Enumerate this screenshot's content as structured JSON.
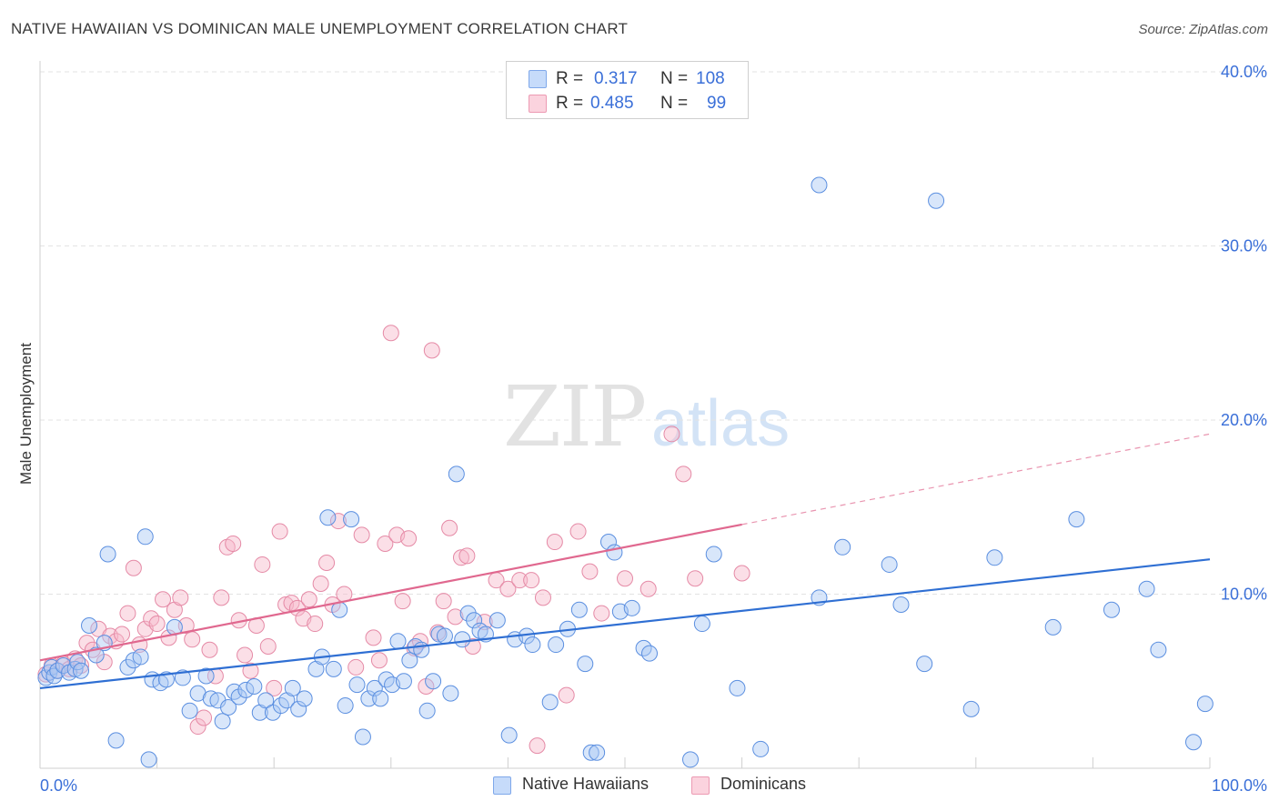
{
  "title": "NATIVE HAWAIIAN VS DOMINICAN MALE UNEMPLOYMENT CORRELATION CHART",
  "source": "Source: ZipAtlas.com",
  "watermark": {
    "zip": "ZIP",
    "atlas": "atlas"
  },
  "legend_top": {
    "rows": [
      {
        "r_label": "R =",
        "r_value": "0.317",
        "n_label": "N =",
        "n_value": "108",
        "color": "#a9c8f5"
      },
      {
        "r_label": "R =",
        "r_value": "0.485",
        "n_label": "N =",
        "n_value": "99",
        "color": "#f7b8c9"
      }
    ]
  },
  "bottom_legend": [
    {
      "label": "Native Hawaiians",
      "color": "#a9c8f5"
    },
    {
      "label": "Dominicans",
      "color": "#f7b8c9"
    }
  ],
  "chart_data": {
    "type": "scatter",
    "title": "NATIVE HAWAIIAN VS DOMINICAN MALE UNEMPLOYMENT CORRELATION CHART",
    "xlabel": "",
    "ylabel": "Male Unemployment",
    "xlim": [
      0,
      100
    ],
    "ylim": [
      0,
      40
    ],
    "x_tick_labels": [
      "0.0%",
      "100.0%"
    ],
    "y_tick_labels": [
      "10.0%",
      "20.0%",
      "30.0%",
      "40.0%"
    ],
    "y_ticks": [
      10,
      20,
      30,
      40
    ],
    "grid": true,
    "legend_position": "top-center",
    "colors": {
      "native_hawaiians_fill": "#a9c8f5",
      "native_hawaiians_stroke": "#5b8fe0",
      "native_hawaiians_line": "#2f6fd3",
      "dominicans_fill": "#f7b8c9",
      "dominicans_stroke": "#e58aa6",
      "dominicans_line": "#e0688f",
      "tick_label": "#3a6fd8"
    },
    "series": [
      {
        "name": "Native Hawaiians",
        "trend": {
          "x": [
            0,
            100
          ],
          "y": [
            4.6,
            12.0
          ]
        },
        "points": [
          [
            0.5,
            5.2
          ],
          [
            0.8,
            5.5
          ],
          [
            1.0,
            5.8
          ],
          [
            1.2,
            5.3
          ],
          [
            1.5,
            5.6
          ],
          [
            2.0,
            5.9
          ],
          [
            2.5,
            5.5
          ],
          [
            3.0,
            5.7
          ],
          [
            3.2,
            6.1
          ],
          [
            3.5,
            5.6
          ],
          [
            4.2,
            8.2
          ],
          [
            4.8,
            6.5
          ],
          [
            5.5,
            7.2
          ],
          [
            5.8,
            12.3
          ],
          [
            6.5,
            1.6
          ],
          [
            7.5,
            5.8
          ],
          [
            8.0,
            6.2
          ],
          [
            8.6,
            6.4
          ],
          [
            9.0,
            13.3
          ],
          [
            9.3,
            0.5
          ],
          [
            9.6,
            5.1
          ],
          [
            10.3,
            4.9
          ],
          [
            10.8,
            5.1
          ],
          [
            11.5,
            8.1
          ],
          [
            12.2,
            5.2
          ],
          [
            12.8,
            3.3
          ],
          [
            13.5,
            4.3
          ],
          [
            14.2,
            5.3
          ],
          [
            14.6,
            4.0
          ],
          [
            15.2,
            3.9
          ],
          [
            15.6,
            2.7
          ],
          [
            16.1,
            3.5
          ],
          [
            16.6,
            4.4
          ],
          [
            17.0,
            4.1
          ],
          [
            17.6,
            4.5
          ],
          [
            18.3,
            4.7
          ],
          [
            18.8,
            3.2
          ],
          [
            19.3,
            3.9
          ],
          [
            19.9,
            3.2
          ],
          [
            20.6,
            3.6
          ],
          [
            21.1,
            3.9
          ],
          [
            21.6,
            4.6
          ],
          [
            22.1,
            3.4
          ],
          [
            22.6,
            4.0
          ],
          [
            23.6,
            5.7
          ],
          [
            24.1,
            6.4
          ],
          [
            24.6,
            14.4
          ],
          [
            25.1,
            5.7
          ],
          [
            25.6,
            9.1
          ],
          [
            26.1,
            3.6
          ],
          [
            26.6,
            14.3
          ],
          [
            27.1,
            4.8
          ],
          [
            27.6,
            1.8
          ],
          [
            28.1,
            4.0
          ],
          [
            28.6,
            4.6
          ],
          [
            29.1,
            4.0
          ],
          [
            29.6,
            5.1
          ],
          [
            30.1,
            4.8
          ],
          [
            30.6,
            7.3
          ],
          [
            31.1,
            5.0
          ],
          [
            31.6,
            6.2
          ],
          [
            32.1,
            7.0
          ],
          [
            32.6,
            6.8
          ],
          [
            33.1,
            3.3
          ],
          [
            33.6,
            5.0
          ],
          [
            34.1,
            7.7
          ],
          [
            34.6,
            7.6
          ],
          [
            35.1,
            4.3
          ],
          [
            35.6,
            16.9
          ],
          [
            36.1,
            7.4
          ],
          [
            36.6,
            8.9
          ],
          [
            37.1,
            8.5
          ],
          [
            37.6,
            7.9
          ],
          [
            38.1,
            7.7
          ],
          [
            39.1,
            8.5
          ],
          [
            40.1,
            1.9
          ],
          [
            40.6,
            7.4
          ],
          [
            41.6,
            7.6
          ],
          [
            42.1,
            7.1
          ],
          [
            43.6,
            3.8
          ],
          [
            44.1,
            7.1
          ],
          [
            45.1,
            8.0
          ],
          [
            46.1,
            9.1
          ],
          [
            46.6,
            6.0
          ],
          [
            47.1,
            0.9
          ],
          [
            47.6,
            0.9
          ],
          [
            48.6,
            13.0
          ],
          [
            49.1,
            12.4
          ],
          [
            49.6,
            9.0
          ],
          [
            50.6,
            9.2
          ],
          [
            51.6,
            6.9
          ],
          [
            52.1,
            6.6
          ],
          [
            55.6,
            0.5
          ],
          [
            56.6,
            8.3
          ],
          [
            57.6,
            12.3
          ],
          [
            59.6,
            4.6
          ],
          [
            61.6,
            1.1
          ],
          [
            66.6,
            9.8
          ],
          [
            66.6,
            33.5
          ],
          [
            68.6,
            12.7
          ],
          [
            72.6,
            11.7
          ],
          [
            73.6,
            9.4
          ],
          [
            75.6,
            6.0
          ],
          [
            76.6,
            32.6
          ],
          [
            79.6,
            3.4
          ],
          [
            81.6,
            12.1
          ],
          [
            86.6,
            8.1
          ],
          [
            88.6,
            14.3
          ],
          [
            91.6,
            9.1
          ],
          [
            94.6,
            10.3
          ],
          [
            95.6,
            6.8
          ],
          [
            98.6,
            1.5
          ],
          [
            99.6,
            3.7
          ]
        ]
      },
      {
        "name": "Dominicans",
        "trend": {
          "x": [
            0,
            60
          ],
          "y": [
            6.2,
            14.0
          ]
        },
        "trend_extension": {
          "x": [
            60,
            100
          ],
          "y": [
            14.0,
            19.2
          ]
        },
        "points": [
          [
            0.5,
            5.4
          ],
          [
            1.0,
            5.9
          ],
          [
            1.5,
            5.6
          ],
          [
            2.0,
            6.0
          ],
          [
            2.5,
            5.7
          ],
          [
            3.0,
            6.3
          ],
          [
            3.5,
            5.9
          ],
          [
            4.0,
            7.2
          ],
          [
            4.5,
            6.8
          ],
          [
            5.0,
            8.0
          ],
          [
            5.5,
            6.1
          ],
          [
            6.0,
            7.6
          ],
          [
            6.5,
            7.3
          ],
          [
            7.0,
            7.7
          ],
          [
            7.5,
            8.9
          ],
          [
            8.0,
            11.5
          ],
          [
            8.5,
            7.1
          ],
          [
            9.0,
            8.0
          ],
          [
            9.5,
            8.6
          ],
          [
            10.0,
            8.3
          ],
          [
            10.5,
            9.7
          ],
          [
            11.0,
            7.5
          ],
          [
            11.5,
            9.1
          ],
          [
            12.0,
            9.8
          ],
          [
            12.5,
            8.2
          ],
          [
            13.0,
            7.4
          ],
          [
            13.5,
            2.4
          ],
          [
            14.0,
            2.9
          ],
          [
            14.5,
            6.8
          ],
          [
            15.0,
            5.3
          ],
          [
            15.5,
            9.8
          ],
          [
            16.0,
            12.7
          ],
          [
            16.5,
            12.9
          ],
          [
            17.0,
            8.5
          ],
          [
            17.5,
            6.5
          ],
          [
            18.0,
            5.6
          ],
          [
            18.5,
            8.2
          ],
          [
            19.0,
            11.7
          ],
          [
            19.5,
            7.0
          ],
          [
            20.0,
            4.6
          ],
          [
            20.5,
            13.6
          ],
          [
            21.0,
            9.4
          ],
          [
            21.5,
            9.5
          ],
          [
            22.0,
            9.2
          ],
          [
            22.5,
            8.6
          ],
          [
            23.0,
            9.7
          ],
          [
            23.5,
            8.3
          ],
          [
            24.0,
            10.6
          ],
          [
            24.5,
            11.8
          ],
          [
            25.0,
            9.4
          ],
          [
            25.5,
            14.2
          ],
          [
            26.0,
            10.0
          ],
          [
            27.0,
            5.8
          ],
          [
            27.5,
            13.4
          ],
          [
            28.5,
            7.5
          ],
          [
            29.0,
            6.2
          ],
          [
            29.5,
            12.9
          ],
          [
            30.0,
            25.0
          ],
          [
            30.5,
            13.4
          ],
          [
            31.0,
            9.6
          ],
          [
            31.5,
            13.2
          ],
          [
            32.0,
            6.9
          ],
          [
            32.5,
            7.3
          ],
          [
            33.0,
            4.7
          ],
          [
            33.5,
            24.0
          ],
          [
            34.0,
            7.8
          ],
          [
            34.5,
            9.6
          ],
          [
            35.0,
            13.8
          ],
          [
            35.5,
            8.7
          ],
          [
            36.0,
            12.1
          ],
          [
            36.5,
            12.2
          ],
          [
            37.0,
            7.0
          ],
          [
            38.0,
            8.4
          ],
          [
            39.0,
            10.8
          ],
          [
            40.0,
            10.3
          ],
          [
            41.0,
            10.8
          ],
          [
            42.0,
            10.8
          ],
          [
            42.5,
            1.3
          ],
          [
            43.0,
            9.8
          ],
          [
            44.0,
            13.0
          ],
          [
            45.0,
            4.2
          ],
          [
            46.0,
            13.6
          ],
          [
            47.0,
            11.3
          ],
          [
            48.0,
            8.9
          ],
          [
            50.0,
            10.9
          ],
          [
            52.0,
            10.3
          ],
          [
            54.0,
            19.2
          ],
          [
            55.0,
            16.9
          ],
          [
            56.0,
            10.9
          ],
          [
            60.0,
            11.2
          ]
        ]
      }
    ]
  }
}
